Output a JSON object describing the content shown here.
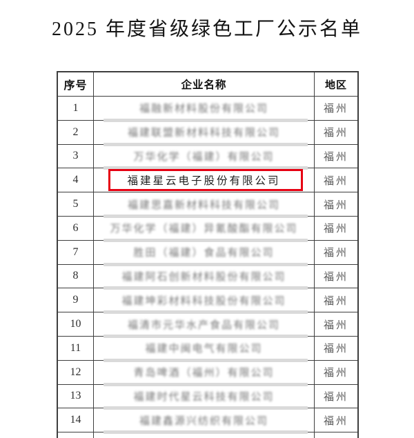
{
  "title": "2025 年度省级绿色工厂公示名单",
  "table": {
    "headers": {
      "no": "序号",
      "company": "企业名称",
      "region": "地区"
    },
    "border_color": "#3d3d3d",
    "highlight_color": "#e60012",
    "rows": [
      {
        "no": "1",
        "company": "福融新材料股份有限公司",
        "region": "福州",
        "blurred": true,
        "highlighted": false
      },
      {
        "no": "2",
        "company": "福建联盟新材料科技有限公司",
        "region": "福州",
        "blurred": true,
        "highlighted": false
      },
      {
        "no": "3",
        "company": "万华化学（福建）有限公司",
        "region": "福州",
        "blurred": true,
        "highlighted": false
      },
      {
        "no": "4",
        "company": "福建星云电子股份有限公司",
        "region": "福州",
        "blurred": false,
        "highlighted": true
      },
      {
        "no": "5",
        "company": "福建思嘉新材料科技有限公司",
        "region": "福州",
        "blurred": true,
        "highlighted": false
      },
      {
        "no": "6",
        "company": "万华化学（福建）异氰酸酯有限公司",
        "region": "福州",
        "blurred": true,
        "highlighted": false
      },
      {
        "no": "7",
        "company": "胜田（福建）食品有限公司",
        "region": "福州",
        "blurred": true,
        "highlighted": false
      },
      {
        "no": "8",
        "company": "福建阿石创新材料股份有限公司",
        "region": "福州",
        "blurred": true,
        "highlighted": false
      },
      {
        "no": "9",
        "company": "福建坤彩材料科技股份有限公司",
        "region": "福州",
        "blurred": true,
        "highlighted": false
      },
      {
        "no": "10",
        "company": "福清市元华水产食品有限公司",
        "region": "福州",
        "blurred": true,
        "highlighted": false
      },
      {
        "no": "11",
        "company": "福建中闽电气有限公司",
        "region": "福州",
        "blurred": true,
        "highlighted": false
      },
      {
        "no": "12",
        "company": "青岛啤酒（福州）有限公司",
        "region": "福州",
        "blurred": true,
        "highlighted": false
      },
      {
        "no": "13",
        "company": "福建时代星云科技有限公司",
        "region": "福州",
        "blurred": true,
        "highlighted": false
      },
      {
        "no": "14",
        "company": "福建鑫源兴纺织有限公司",
        "region": "福州",
        "blurred": true,
        "highlighted": false
      }
    ]
  }
}
